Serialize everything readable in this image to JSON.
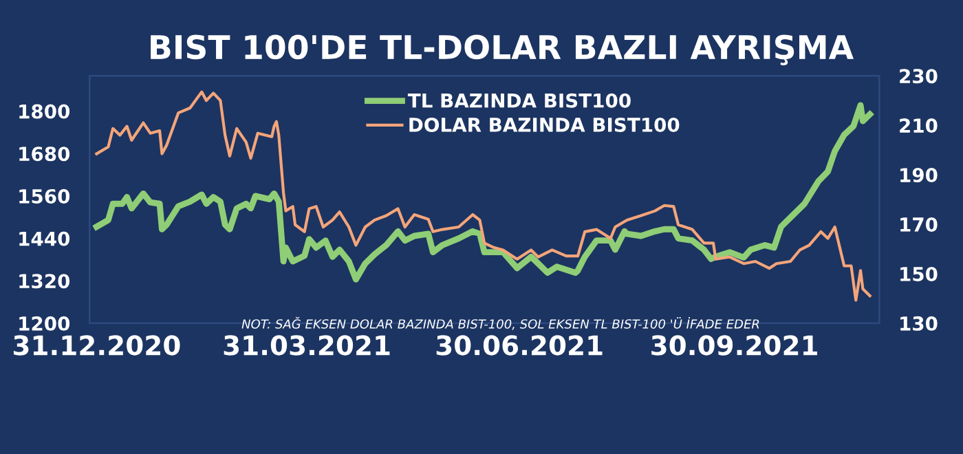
{
  "chart_data": {
    "type": "line",
    "title": "BIST 100'DE TL-DOLAR BAZLI AYRIŞMA",
    "annotations": [
      "NOT: SAĞ EKSEN DOLAR BAZINDA BIST-100, SOL EKSEN TL BIST-100 'Ü İFADE EDER"
    ],
    "series": [
      {
        "name": "TL BAZINDA BIST100",
        "color": "#8fce76",
        "axis": "y",
        "x": [
          "2020-12-31",
          "2021-01-05",
          "2021-01-07",
          "2021-01-11",
          "2021-01-13",
          "2021-01-15",
          "2021-01-20",
          "2021-01-23",
          "2021-01-27",
          "2021-01-28",
          "2021-01-30",
          "2021-02-04",
          "2021-02-09",
          "2021-02-14",
          "2021-02-16",
          "2021-02-19",
          "2021-02-22",
          "2021-02-24",
          "2021-02-26",
          "2021-03-01",
          "2021-03-05",
          "2021-03-07",
          "2021-03-09",
          "2021-03-15",
          "2021-03-17",
          "2021-03-19",
          "2021-03-21",
          "2021-03-22",
          "2021-03-25",
          "2021-03-30",
          "2021-04-01",
          "2021-04-04",
          "2021-04-08",
          "2021-04-11",
          "2021-04-14",
          "2021-04-18",
          "2021-04-21",
          "2021-04-25",
          "2021-04-29",
          "2021-05-04",
          "2021-05-09",
          "2021-05-12",
          "2021-05-16",
          "2021-05-22",
          "2021-05-24",
          "2021-05-28",
          "2021-06-04",
          "2021-06-10",
          "2021-06-13",
          "2021-06-15",
          "2021-06-19",
          "2021-06-23",
          "2021-06-29",
          "2021-07-05",
          "2021-07-08",
          "2021-07-12",
          "2021-07-16",
          "2021-07-24",
          "2021-07-25",
          "2021-07-28",
          "2021-08-02",
          "2021-08-08",
          "2021-08-10",
          "2021-08-14",
          "2021-08-15",
          "2021-08-21",
          "2021-08-27",
          "2021-08-31",
          "2021-09-04",
          "2021-09-06",
          "2021-09-12",
          "2021-09-17",
          "2021-09-20",
          "2021-09-22",
          "2021-09-28",
          "2021-10-04",
          "2021-10-07",
          "2021-10-13",
          "2021-10-17",
          "2021-10-20",
          "2021-10-24",
          "2021-10-30",
          "2021-11-05",
          "2021-11-09",
          "2021-11-12",
          "2021-11-16",
          "2021-11-20",
          "2021-11-23",
          "2021-11-24",
          "2021-11-27"
        ],
        "values": [
          1473,
          1492,
          1538,
          1538,
          1557,
          1525,
          1567,
          1542,
          1538,
          1466,
          1479,
          1531,
          1544,
          1564,
          1538,
          1557,
          1544,
          1479,
          1466,
          1525,
          1538,
          1525,
          1560,
          1551,
          1567,
          1544,
          1375,
          1414,
          1375,
          1391,
          1438,
          1414,
          1434,
          1388,
          1408,
          1375,
          1324,
          1369,
          1395,
          1421,
          1460,
          1434,
          1447,
          1453,
          1401,
          1421,
          1440,
          1460,
          1453,
          1401,
          1401,
          1401,
          1356,
          1388,
          1369,
          1343,
          1360,
          1343,
          1349,
          1388,
          1434,
          1434,
          1408,
          1460,
          1453,
          1447,
          1460,
          1466,
          1466,
          1440,
          1434,
          1408,
          1382,
          1388,
          1401,
          1386,
          1408,
          1421,
          1414,
          1473,
          1499,
          1538,
          1602,
          1629,
          1687,
          1733,
          1758,
          1817,
          1772,
          1791
        ]
      },
      {
        "name": "DOLAR BAZINDA BIST100",
        "color": "#f4a57a",
        "axis": "y2",
        "x": [
          "2020-12-31",
          "2021-01-05",
          "2021-01-07",
          "2021-01-10",
          "2021-01-13",
          "2021-01-15",
          "2021-01-20",
          "2021-01-23",
          "2021-01-27",
          "2021-01-28",
          "2021-01-30",
          "2021-02-04",
          "2021-02-09",
          "2021-02-14",
          "2021-02-16",
          "2021-02-19",
          "2021-02-22",
          "2021-02-24",
          "2021-02-26",
          "2021-03-01",
          "2021-03-05",
          "2021-03-07",
          "2021-03-10",
          "2021-03-16",
          "2021-03-17",
          "2021-03-18",
          "2021-03-19",
          "2021-03-21",
          "2021-03-22",
          "2021-03-25",
          "2021-03-26",
          "2021-03-30",
          "2021-04-01",
          "2021-04-04",
          "2021-04-07",
          "2021-04-11",
          "2021-04-14",
          "2021-04-18",
          "2021-04-21",
          "2021-04-25",
          "2021-04-29",
          "2021-05-04",
          "2021-05-09",
          "2021-05-12",
          "2021-05-16",
          "2021-05-22",
          "2021-05-24",
          "2021-05-28",
          "2021-06-04",
          "2021-06-10",
          "2021-06-13",
          "2021-06-15",
          "2021-06-19",
          "2021-06-23",
          "2021-06-29",
          "2021-07-05",
          "2021-07-08",
          "2021-07-14",
          "2021-07-20",
          "2021-07-25",
          "2021-07-28",
          "2021-08-02",
          "2021-08-08",
          "2021-08-10",
          "2021-08-15",
          "2021-08-21",
          "2021-08-27",
          "2021-08-31",
          "2021-09-04",
          "2021-09-06",
          "2021-09-12",
          "2021-09-17",
          "2021-09-21",
          "2021-09-22",
          "2021-09-28",
          "2021-10-04",
          "2021-10-09",
          "2021-10-15",
          "2021-10-18",
          "2021-10-24",
          "2021-10-28",
          "2021-11-01",
          "2021-11-06",
          "2021-11-09",
          "2021-11-12",
          "2021-11-16",
          "2021-11-19",
          "2021-11-21",
          "2021-11-23",
          "2021-11-24",
          "2021-11-27"
        ],
        "values": [
          198.5,
          201.3,
          208.7,
          206,
          209.6,
          204,
          211,
          206.8,
          207.8,
          198.5,
          202,
          215,
          217,
          223.5,
          220,
          223,
          220,
          206,
          197.6,
          208.7,
          203.2,
          196.7,
          206.8,
          205.4,
          209.6,
          211.5,
          206,
          182.8,
          175.4,
          177.2,
          169.8,
          167,
          176.3,
          177.2,
          168.9,
          171.7,
          175,
          168.9,
          161.5,
          168.9,
          171.7,
          173.5,
          176.3,
          168.9,
          173.9,
          172,
          167,
          167.9,
          168.9,
          173.9,
          171.7,
          162.4,
          160.6,
          159.6,
          155.9,
          159.6,
          156.8,
          159.6,
          157.2,
          157.2,
          167,
          167.9,
          164.3,
          168.9,
          171.7,
          173.5,
          175.4,
          177.6,
          177.2,
          169.8,
          167.9,
          162.4,
          162.4,
          155.9,
          156.8,
          154.1,
          155,
          152.2,
          154.1,
          155,
          159.6,
          161.5,
          167,
          164.3,
          168.9,
          153.2,
          153.2,
          139.3,
          151.3,
          143.9,
          141.1
        ]
      }
    ],
    "xlim": [
      "2020-12-28",
      "2021-12-01"
    ],
    "xticks": [
      {
        "value": "2020-12-31",
        "label": "31.12.2020"
      },
      {
        "value": "2021-03-31",
        "label": "31.03.2021"
      },
      {
        "value": "2021-06-30",
        "label": "30.06.2021"
      },
      {
        "value": "2021-09-30",
        "label": "30.09.2021"
      }
    ],
    "ylim": [
      1200,
      1900
    ],
    "yticks": [
      1200,
      1320,
      1440,
      1560,
      1680,
      1800
    ],
    "y2lim": [
      130,
      230
    ],
    "y2ticks": [
      130,
      150,
      170,
      190,
      210,
      230
    ],
    "grid": false,
    "legend": "top",
    "line_style": "solid",
    "marker": "none"
  }
}
